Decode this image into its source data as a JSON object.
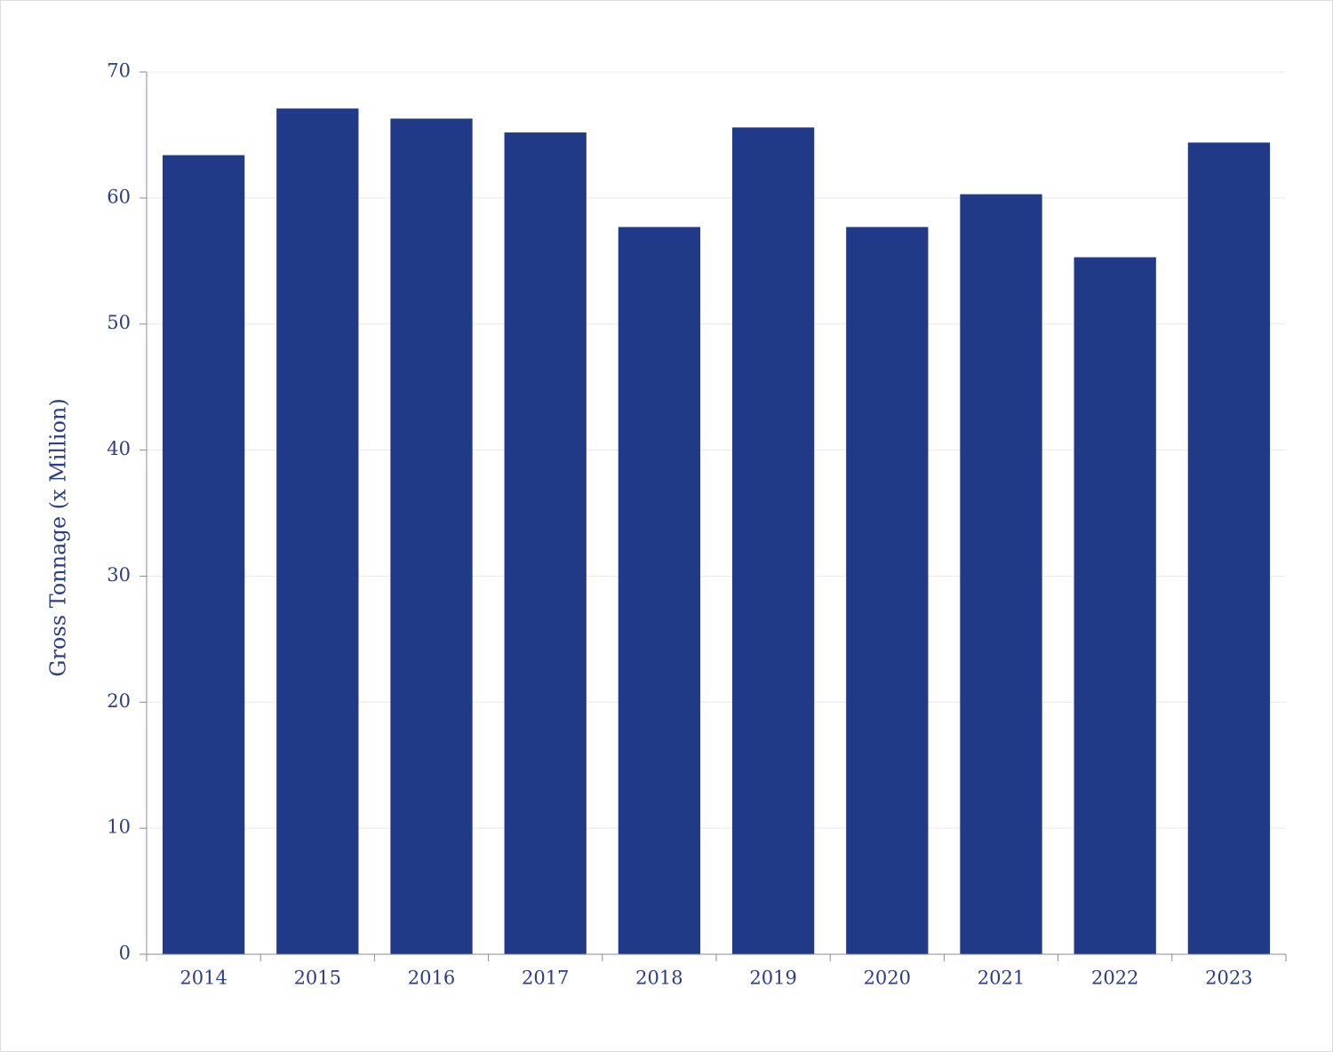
{
  "chart_data": {
    "type": "bar",
    "y_label": "Gross Tonnage (x Million)",
    "categories": [
      "2014",
      "2015",
      "2016",
      "2017",
      "2018",
      "2019",
      "2020",
      "2021",
      "2022",
      "2023"
    ],
    "values": [
      63.4,
      67.1,
      66.3,
      65.2,
      57.7,
      65.6,
      57.7,
      60.3,
      55.3,
      64.4
    ],
    "color": "#213a87",
    "ylim": [
      0,
      70
    ],
    "yticks": [
      0,
      10,
      20,
      30,
      40,
      50,
      60,
      70
    ],
    "grid": true
  }
}
